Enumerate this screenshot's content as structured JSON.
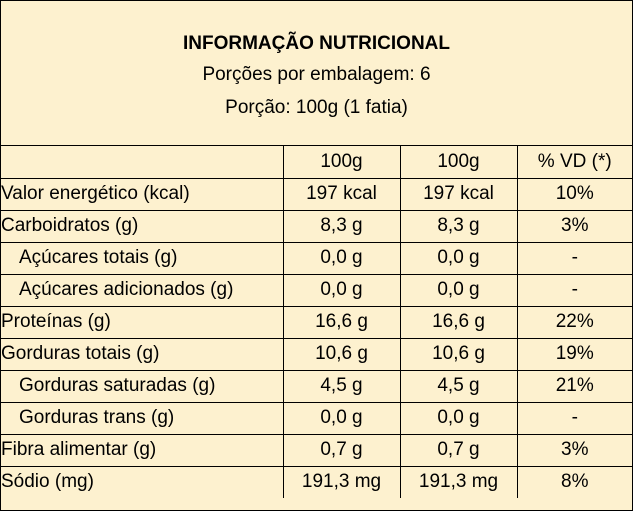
{
  "header": {
    "title": "INFORMAÇÃO NUTRICIONAL",
    "servings_per_package": "Porções por embalagem: 6",
    "serving_size": "Porção: 100g (1 fatia)"
  },
  "table": {
    "columns": [
      "",
      "100g",
      "100g",
      "% VD (*)"
    ],
    "rows": [
      {
        "name": "Valor energético (kcal)",
        "a": "197 kcal",
        "b": "197 kcal",
        "vd": "10%"
      },
      {
        "name": "Carboidratos (g)",
        "a": "8,3 g",
        "b": "8,3 g",
        "vd": "3%"
      },
      {
        "name": "Açúcares totais (g)",
        "a": "0,0 g",
        "b": "0,0 g",
        "vd": "-"
      },
      {
        "name": "Açúcares adicionados (g)",
        "a": "0,0 g",
        "b": "0,0 g",
        "vd": "-"
      },
      {
        "name": "Proteínas (g)",
        "a": "16,6 g",
        "b": "16,6 g",
        "vd": "22%"
      },
      {
        "name": "Gorduras totais (g)",
        "a": "10,6 g",
        "b": "10,6 g",
        "vd": "19%"
      },
      {
        "name": "Gorduras saturadas (g)",
        "a": "4,5 g",
        "b": "4,5 g",
        "vd": "21%"
      },
      {
        "name": "Gorduras trans (g)",
        "a": "0,0 g",
        "b": "0,0 g",
        "vd": "-"
      },
      {
        "name": "Fibra alimentar (g)",
        "a": "0,7 g",
        "b": "0,7 g",
        "vd": "3%"
      },
      {
        "name": "Sódio (mg)",
        "a": "191,3 mg",
        "b": "191,3 mg",
        "vd": "8%"
      }
    ]
  },
  "colors": {
    "background": "#fdf1cf",
    "border": "#000000",
    "text": "#000000"
  }
}
